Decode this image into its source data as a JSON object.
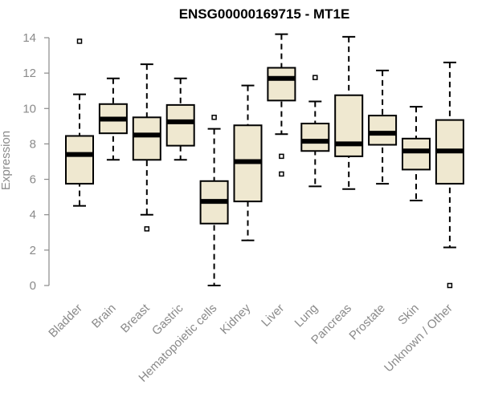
{
  "chart_data": {
    "type": "boxplot",
    "title": "ENSG00000169715 - MT1E",
    "xlabel": "",
    "ylabel": "Expression",
    "ylim": [
      0,
      14
    ],
    "yticks": [
      0,
      2,
      4,
      6,
      8,
      10,
      12,
      14
    ],
    "grid": false,
    "legend": "none",
    "categories": [
      "Bladder",
      "Brain",
      "Breast",
      "Gastric",
      "Hematopoietic cells",
      "Kidney",
      "Liver",
      "Lung",
      "Pancreas",
      "Prostate",
      "Skin",
      "Unknown / Other"
    ],
    "series": [
      {
        "stats": [
          {
            "category": "Bladder",
            "whisker_low": 4.5,
            "q1": 5.75,
            "median": 7.4,
            "q3": 8.45,
            "whisker_high": 10.8,
            "outliers": [
              13.8
            ]
          },
          {
            "category": "Brain",
            "whisker_low": 7.1,
            "q1": 8.6,
            "median": 9.4,
            "q3": 10.25,
            "whisker_high": 11.7,
            "outliers": []
          },
          {
            "category": "Breast",
            "whisker_low": 4.0,
            "q1": 7.1,
            "median": 8.5,
            "q3": 9.5,
            "whisker_high": 12.5,
            "outliers": [
              3.2
            ]
          },
          {
            "category": "Gastric",
            "whisker_low": 7.1,
            "q1": 7.9,
            "median": 9.25,
            "q3": 10.2,
            "whisker_high": 11.7,
            "outliers": []
          },
          {
            "category": "Hematopoietic cells",
            "whisker_low": 0.0,
            "q1": 3.5,
            "median": 4.75,
            "q3": 5.9,
            "whisker_high": 8.85,
            "outliers": [
              9.5
            ]
          },
          {
            "category": "Kidney",
            "whisker_low": 2.55,
            "q1": 4.75,
            "median": 7.0,
            "q3": 9.05,
            "whisker_high": 11.3,
            "outliers": []
          },
          {
            "category": "Liver",
            "whisker_low": 8.55,
            "q1": 10.45,
            "median": 11.7,
            "q3": 12.3,
            "whisker_high": 14.2,
            "outliers": [
              7.3,
              6.3
            ]
          },
          {
            "category": "Lung",
            "whisker_low": 5.6,
            "q1": 7.6,
            "median": 8.15,
            "q3": 9.15,
            "whisker_high": 10.4,
            "outliers": [
              11.75
            ]
          },
          {
            "category": "Pancreas",
            "whisker_low": 5.45,
            "q1": 7.3,
            "median": 8.0,
            "q3": 10.75,
            "whisker_high": 14.05,
            "outliers": []
          },
          {
            "category": "Prostate",
            "whisker_low": 5.75,
            "q1": 7.95,
            "median": 8.6,
            "q3": 9.6,
            "whisker_high": 12.15,
            "outliers": []
          },
          {
            "category": "Skin",
            "whisker_low": 4.8,
            "q1": 6.55,
            "median": 7.6,
            "q3": 8.3,
            "whisker_high": 10.1,
            "outliers": []
          },
          {
            "category": "Unknown / Other",
            "whisker_low": 2.15,
            "q1": 5.75,
            "median": 7.6,
            "q3": 9.35,
            "whisker_high": 12.6,
            "outliers": [
              0.0
            ]
          }
        ]
      }
    ],
    "colors": {
      "box_fill": "#efe8d0",
      "box_stroke": "#000000",
      "axis": "#8a8a8a",
      "text": "#8a8a8a",
      "title": "#000000"
    }
  }
}
